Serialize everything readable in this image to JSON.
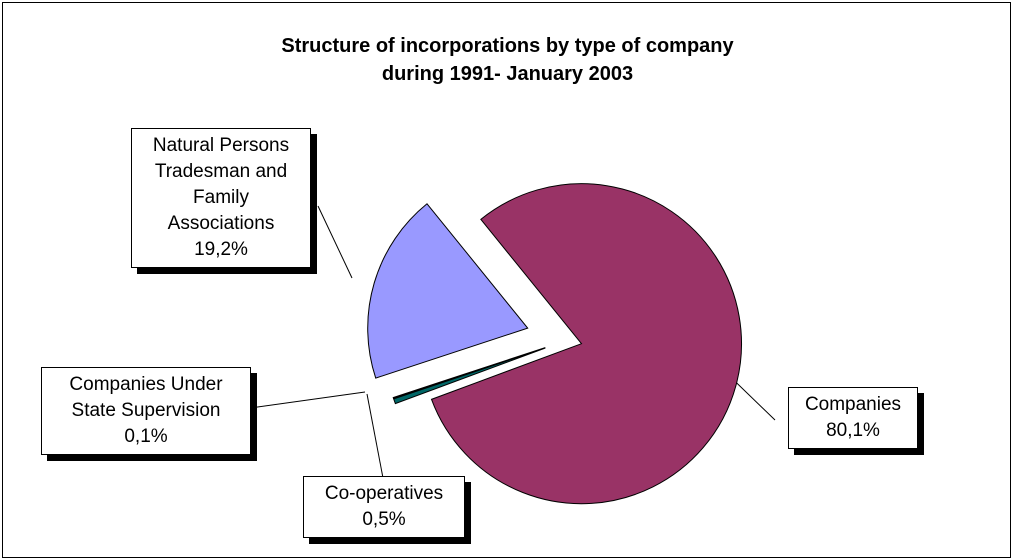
{
  "chart_data": {
    "type": "pie",
    "title": "Structure of incorporations by type of company during 1991- January  2003",
    "categories": [
      "Companies",
      "Co-operatives",
      "Companies Under State Supervision",
      "Natural Persons Tradesman and Family Associations"
    ],
    "values": [
      80.1,
      0.5,
      0.1,
      19.2
    ],
    "value_labels": [
      "80,1%",
      "0,5%",
      "0,1%",
      "19,2%"
    ],
    "colors": [
      "#993366",
      "#006666",
      "#ccffcc",
      "#9999ff"
    ]
  }
}
